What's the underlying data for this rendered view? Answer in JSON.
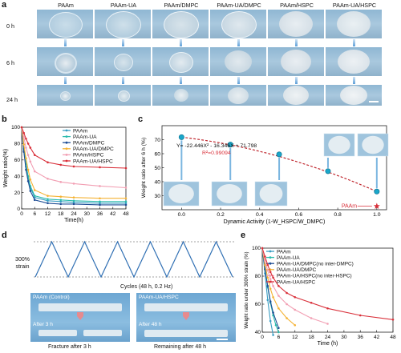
{
  "panel_a": {
    "label": "a",
    "columns": [
      "PAAm",
      "PAAm-UA",
      "PAAm/DMPC",
      "PAAm-UA/DMPC",
      "PAAm/HSPC",
      "PAAm-UA/HSPC"
    ],
    "rows": [
      "0 h",
      "6 h",
      "24 h"
    ]
  },
  "panel_b": {
    "label": "b"
  },
  "panel_c": {
    "label": "c",
    "equation": "Y= -22.446X² - 16.346X + 71.798",
    "r2": "R²=0.99094",
    "paam_label": "PAAm"
  },
  "panel_d": {
    "label": "d",
    "strain_label": "300%\nstrain",
    "cycles_label": "Cycles (48 h, 0.2 Hz)",
    "left_top": "PAAm (Control)",
    "left_bottom": "After 3 h",
    "right_top": "PAAm-UA/HSPC",
    "right_bottom": "After 48 h",
    "left_caption": "Fracture after 3 h",
    "right_caption": "Remaining after 48 h"
  },
  "panel_e": {
    "label": "e"
  },
  "chart_data": [
    {
      "type": "line",
      "panel": "b",
      "xlabel": "Time(h)",
      "ylabel": "Weight ratio(%)",
      "xlim": [
        0,
        48
      ],
      "ylim": [
        0,
        100
      ],
      "xticks": [
        "0",
        "6",
        "12",
        "18",
        "24",
        "30",
        "36",
        "42",
        "48"
      ],
      "yticks": [
        "0",
        "20",
        "40",
        "60",
        "80",
        "100"
      ],
      "legend_position": "top-right",
      "series": [
        {
          "name": "PAAm",
          "color": "#3a9ec4",
          "x": [
            0,
            1,
            2,
            3,
            4,
            6,
            12,
            18,
            24,
            36,
            48
          ],
          "y": [
            100,
            72,
            52,
            38,
            26,
            14,
            10,
            9,
            8,
            7,
            7
          ]
        },
        {
          "name": "PAAm-UA",
          "color": "#2bbbad",
          "x": [
            0,
            1,
            2,
            3,
            4,
            6,
            12,
            18,
            24,
            36,
            48
          ],
          "y": [
            100,
            74,
            55,
            40,
            28,
            16,
            12,
            11,
            10,
            9,
            9
          ]
        },
        {
          "name": "PAAm/DMPC",
          "color": "#1f4e96",
          "x": [
            0,
            1,
            2,
            3,
            4,
            6,
            12,
            18,
            24,
            36,
            48
          ],
          "y": [
            100,
            70,
            48,
            34,
            22,
            11,
            7,
            6,
            6,
            5,
            5
          ]
        },
        {
          "name": "PAAm-UA/DMPC",
          "color": "#f5b335",
          "x": [
            0,
            1,
            2,
            3,
            4,
            6,
            12,
            18,
            24,
            36,
            48
          ],
          "y": [
            100,
            79,
            62,
            48,
            36,
            23,
            16,
            15,
            14,
            13,
            13
          ]
        },
        {
          "name": "PAAm/HSPC",
          "color": "#f29fb3",
          "x": [
            0,
            1,
            2,
            3,
            4,
            6,
            12,
            18,
            24,
            36,
            48
          ],
          "y": [
            100,
            88,
            75,
            66,
            58,
            46,
            37,
            33,
            31,
            28,
            26
          ]
        },
        {
          "name": "PAAm-UA/HSPC",
          "color": "#d9303a",
          "x": [
            0,
            1,
            2,
            3,
            4,
            6,
            12,
            18,
            24,
            36,
            48
          ],
          "y": [
            100,
            93,
            86,
            80,
            75,
            66,
            57,
            54,
            52,
            51,
            50
          ]
        }
      ]
    },
    {
      "type": "scatter",
      "panel": "c",
      "xlabel": "Dynamic Activity (1-W_HSPC/W_DMPC)",
      "ylabel": "Weight ratio after 6 h (%)",
      "xlim": [
        -0.1,
        1.05
      ],
      "ylim": [
        20,
        80
      ],
      "xticks": [
        "0.0",
        "0.2",
        "0.4",
        "0.6",
        "0.8",
        "1.0"
      ],
      "yticks": [
        "30",
        "40",
        "50",
        "60",
        "70"
      ],
      "series": [
        {
          "name": "",
          "color": "#1aa6c9",
          "x": [
            0.0,
            0.25,
            0.5,
            0.75,
            1.0
          ],
          "y": [
            71.8,
            66.5,
            59.5,
            47.5,
            33
          ]
        },
        {
          "name": "PAAm",
          "color": "#d9303a",
          "x": [
            1.0
          ],
          "y": [
            22.5
          ]
        }
      ]
    },
    {
      "type": "line",
      "panel": "e",
      "xlabel": "Time (h)",
      "ylabel": "Weight ratio under 300% strain (%)",
      "xlim": [
        0,
        48
      ],
      "ylim": [
        40,
        100
      ],
      "xticks": [
        "0",
        "6",
        "12",
        "18",
        "24",
        "30",
        "36",
        "42",
        "48"
      ],
      "yticks": [
        "40",
        "60",
        "80",
        "100"
      ],
      "legend_position": "top-right",
      "series": [
        {
          "name": "PAAm",
          "color": "#3a9ec4",
          "x": [
            0,
            1,
            2,
            3,
            4
          ],
          "y": [
            100,
            82,
            63,
            48,
            38
          ]
        },
        {
          "name": "PAAm-UA",
          "color": "#2bbbad",
          "x": [
            0,
            1,
            2,
            3,
            4,
            5,
            6
          ],
          "y": [
            100,
            86,
            72,
            61,
            52,
            45,
            40
          ]
        },
        {
          "name": "PAAm-UA/DMPC(no inter-DMPC)",
          "color": "#1f4e96",
          "x": [
            0,
            1,
            2,
            3,
            4,
            6
          ],
          "y": [
            100,
            85,
            73,
            62,
            54,
            43
          ]
        },
        {
          "name": "PAAm-UA/DMPC",
          "color": "#f5b335",
          "x": [
            0,
            1,
            2,
            3,
            4,
            6,
            9,
            12
          ],
          "y": [
            100,
            88,
            79,
            71,
            65,
            57,
            50,
            45
          ]
        },
        {
          "name": "PAAm-UA/HSPC(no inter-HSPC)",
          "color": "#f29fb3",
          "x": [
            0,
            1,
            2,
            3,
            4,
            6,
            9,
            12,
            18,
            24
          ],
          "y": [
            100,
            91,
            84,
            78,
            73,
            66,
            60,
            56,
            50,
            46
          ]
        },
        {
          "name": "PAAm-UA/HSPC",
          "color": "#d9303a",
          "x": [
            0,
            1,
            2,
            3,
            4,
            6,
            9,
            12,
            18,
            24,
            36,
            48
          ],
          "y": [
            100,
            94,
            88,
            83,
            79,
            73,
            68,
            65,
            61,
            57,
            52,
            49
          ]
        }
      ]
    }
  ]
}
